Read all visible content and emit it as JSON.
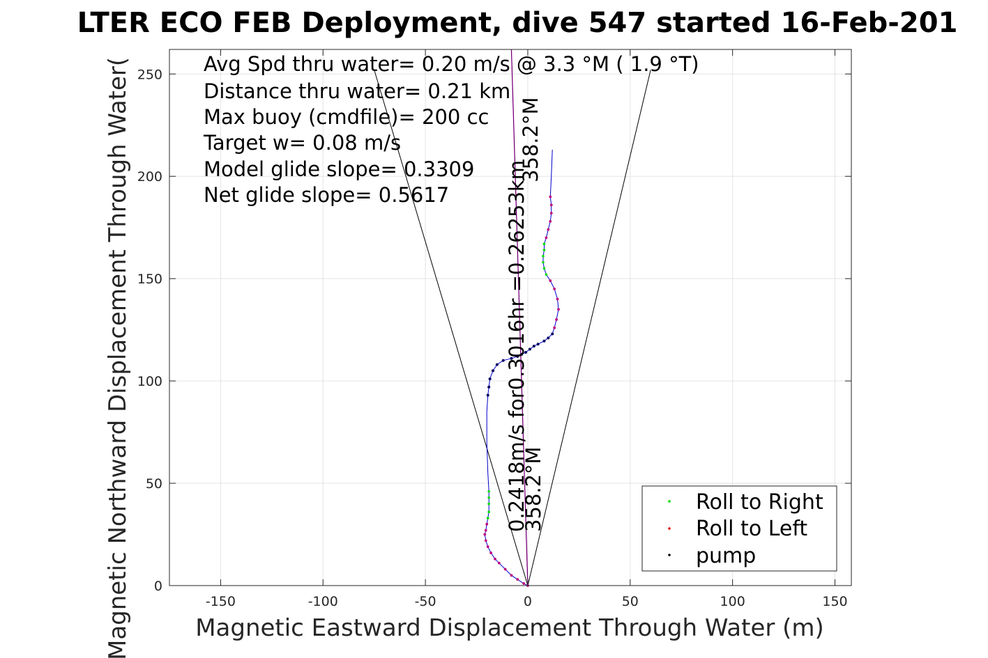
{
  "chart_data": {
    "type": "scatter",
    "title": "LTER ECO FEB Deployment, dive 547 started 16-Feb-201",
    "xlabel": "Magnetic Eastward Displacement Through Water (m)",
    "ylabel": "Magnetic Northward Displacement Through Water(",
    "xlim": [
      -175,
      158
    ],
    "ylim": [
      0,
      262
    ],
    "xticks": [
      -150,
      -100,
      -50,
      0,
      50,
      100,
      150
    ],
    "yticks": [
      0,
      50,
      100,
      150,
      200,
      250
    ],
    "grid": true,
    "legend_position": "bottom-right",
    "annotations": [
      "Avg Spd thru water=  0.20 m/s @   3.3 °M (  1.9 °T)",
      "Distance thru water=  0.21 km",
      "Max buoy (cmdfile)= 200 cc",
      "Target w= 0.08 m/s",
      "Model glide slope= 0.3309",
      "Net glide slope= 0.5617"
    ],
    "rotated_labels": [
      {
        "text": "0.2418m/s for0.3016hr =0.26253km",
        "x": -3,
        "y": 28
      },
      {
        "text": "358.2°M",
        "x": 5,
        "y": 28
      },
      {
        "text": "358.2°M",
        "x": 3,
        "y": 205
      }
    ],
    "cone_lines": [
      {
        "x": [
          0,
          -75
        ],
        "y": [
          0,
          252
        ]
      },
      {
        "x": [
          0,
          60
        ],
        "y": [
          0,
          252
        ]
      }
    ],
    "heading_line": {
      "x": [
        0,
        -8
      ],
      "y": [
        0,
        262
      ]
    },
    "colors": {
      "track": "#0000cc",
      "heading": "#cc00cc",
      "roll_right": "#00dd00",
      "roll_left": "#e00000",
      "pump": "#000000",
      "left_overlay": "#c0007a",
      "pump_overlay": "#000060"
    },
    "series": [
      {
        "name": "Roll to Right",
        "color": "#00dd00"
      },
      {
        "name": "Roll to Left",
        "color": "#e00000"
      },
      {
        "name": "pump",
        "color": "#000000"
      }
    ],
    "track": [
      [
        0,
        0
      ],
      [
        -2,
        1
      ],
      [
        -5,
        3
      ],
      [
        -8,
        5
      ],
      [
        -11,
        8
      ],
      [
        -14,
        11
      ],
      [
        -16,
        13
      ],
      [
        -18,
        16
      ],
      [
        -19.5,
        19
      ],
      [
        -20.5,
        22
      ],
      [
        -21,
        25
      ],
      [
        -20.5,
        27
      ],
      [
        -20,
        30
      ],
      [
        -19.5,
        33
      ],
      [
        -19,
        36
      ],
      [
        -19,
        40
      ],
      [
        -19,
        43
      ],
      [
        -19,
        46
      ],
      [
        -19.5,
        55
      ],
      [
        -20,
        70
      ],
      [
        -20,
        85
      ],
      [
        -19.5,
        93
      ],
      [
        -19,
        97
      ],
      [
        -18.5,
        101
      ],
      [
        -17,
        105
      ],
      [
        -15,
        108
      ],
      [
        -12,
        110
      ],
      [
        -8,
        111
      ],
      [
        -5,
        112
      ],
      [
        -3,
        113
      ],
      [
        -1,
        114
      ],
      [
        1,
        115.5
      ],
      [
        3,
        117
      ],
      [
        5,
        118
      ],
      [
        8,
        119.5
      ],
      [
        10,
        121
      ],
      [
        12,
        123
      ],
      [
        13,
        126
      ],
      [
        14,
        130
      ],
      [
        15,
        135
      ],
      [
        14.5,
        140
      ],
      [
        13,
        145
      ],
      [
        11,
        149
      ],
      [
        9,
        152
      ],
      [
        8,
        155
      ],
      [
        7.5,
        158
      ],
      [
        7.5,
        161
      ],
      [
        8,
        164
      ],
      [
        8,
        167
      ],
      [
        9,
        170
      ],
      [
        10,
        174
      ],
      [
        11,
        178
      ],
      [
        11.5,
        182
      ],
      [
        11.5,
        186
      ],
      [
        11,
        190
      ],
      [
        11.5,
        200
      ],
      [
        12,
        213
      ]
    ],
    "roll_right_points": [
      [
        -19.5,
        33
      ],
      [
        -19,
        36
      ],
      [
        -19,
        40
      ],
      [
        -19,
        43
      ],
      [
        -19,
        46
      ],
      [
        9,
        152
      ],
      [
        8,
        155
      ],
      [
        7.5,
        158
      ],
      [
        7.5,
        161
      ],
      [
        8,
        164
      ],
      [
        8,
        167
      ]
    ],
    "roll_left_points": [
      [
        0,
        0
      ],
      [
        -2,
        1
      ],
      [
        -5,
        3
      ],
      [
        -8,
        5
      ],
      [
        -11,
        8
      ],
      [
        -14,
        11
      ],
      [
        -16,
        13
      ],
      [
        -18,
        16
      ],
      [
        -19.5,
        19
      ],
      [
        -20.5,
        22
      ],
      [
        -21,
        25
      ],
      [
        -20.5,
        27
      ],
      [
        -20,
        30
      ],
      [
        13,
        126
      ],
      [
        14,
        130
      ],
      [
        15,
        135
      ],
      [
        14.5,
        140
      ],
      [
        13,
        145
      ],
      [
        11,
        149
      ],
      [
        9,
        170
      ],
      [
        10,
        174
      ],
      [
        11,
        178
      ],
      [
        11.5,
        182
      ],
      [
        11.5,
        186
      ],
      [
        11,
        190
      ]
    ],
    "pump_points": [
      [
        -19.5,
        93
      ],
      [
        -19,
        97
      ],
      [
        -18.5,
        101
      ],
      [
        -17,
        105
      ],
      [
        -15,
        108
      ],
      [
        -12,
        110
      ],
      [
        -8,
        111
      ],
      [
        -5,
        112
      ],
      [
        -3,
        113
      ],
      [
        -1,
        114
      ],
      [
        1,
        115.5
      ],
      [
        3,
        117
      ],
      [
        5,
        118
      ],
      [
        8,
        119.5
      ],
      [
        10,
        121
      ],
      [
        12,
        123
      ]
    ]
  }
}
